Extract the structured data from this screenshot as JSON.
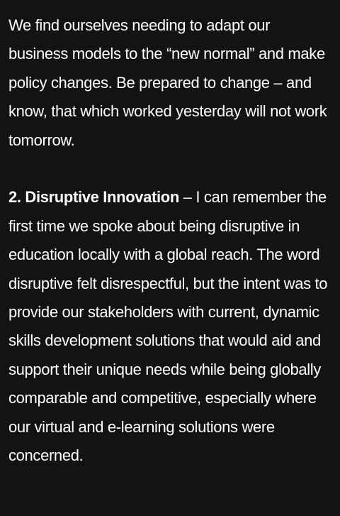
{
  "article": {
    "paragraph_1": "We find ourselves needing to adapt our business models to the “new normal” and make policy changes. Be prepared to change – and know, that which worked yesterday will not work tomorrow.",
    "paragraph_2": {
      "heading": "2. Disruptive Innovation",
      "body": " – I can remember the first time we spoke about being disruptive in education locally with a global reach. The word disruptive felt disrespectful, but the intent was to provide our stakeholders with current, dynamic skills development solutions that would aid and support their unique needs while being globally comparable and competitive, especially where our virtual and e-learning solutions were concerned."
    }
  }
}
